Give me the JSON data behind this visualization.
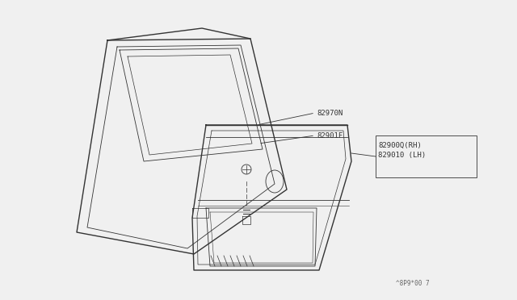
{
  "bg_color": "#f0f0f0",
  "line_color": "#333333",
  "label_color": "#333333",
  "fs_label": 6.5,
  "footer_text": "^8P9*00 7",
  "label_82970N": "82970N",
  "label_82901F": "82901F",
  "label_RH": "82900Q(RH)",
  "label_LH": "829010 (LH)"
}
